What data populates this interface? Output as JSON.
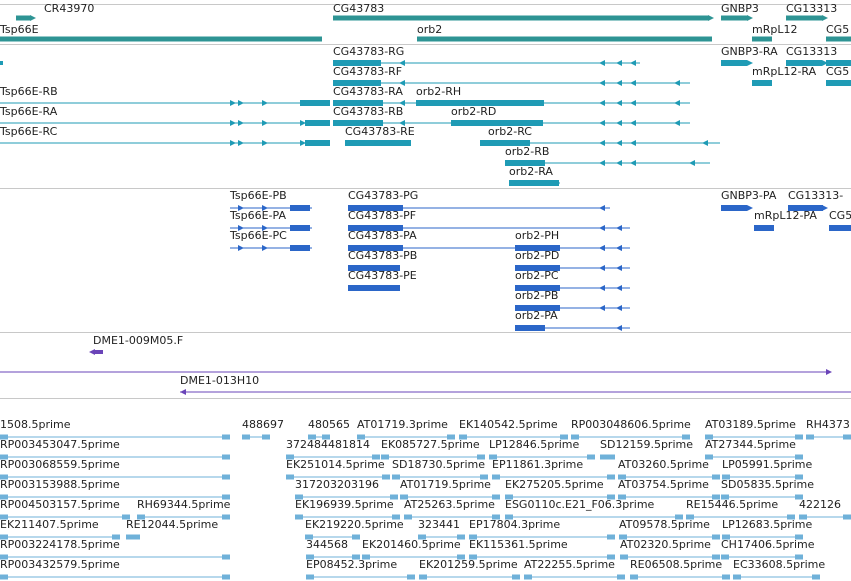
{
  "colors": {
    "gene": "#2e9494",
    "transcript": "#1f9bb5",
    "protein": "#2b66c8",
    "clone": "#6a44b8",
    "est": "#6fb1d9",
    "separator": "#c8c8c8"
  },
  "tracks": {
    "genes": [
      {
        "label": "CR43970",
        "strand": "+"
      },
      {
        "label": "CG43783",
        "strand": "+"
      },
      {
        "label": "GNBP3",
        "strand": "+"
      },
      {
        "label": "CG13313",
        "strand": "+"
      },
      {
        "label": "Tsp66E",
        "strand": "+"
      },
      {
        "label": "orb2",
        "strand": "-"
      },
      {
        "label": "mRpL12",
        "strand": "+"
      },
      {
        "label": "CG5",
        "strand": "+"
      }
    ],
    "transcripts": [
      {
        "label": "CG43783-RG"
      },
      {
        "label": "GNBP3-RA"
      },
      {
        "label": "CG13313"
      },
      {
        "label": "CG43783-RF"
      },
      {
        "label": "mRpL12-RA"
      },
      {
        "label": "CG5"
      },
      {
        "label": "Tsp66E-RB"
      },
      {
        "label": "CG43783-RA"
      },
      {
        "label": "orb2-RH"
      },
      {
        "label": "Tsp66E-RA"
      },
      {
        "label": "CG43783-RB"
      },
      {
        "label": "orb2-RD"
      },
      {
        "label": "Tsp66E-RC"
      },
      {
        "label": "CG43783-RE"
      },
      {
        "label": "orb2-RC"
      },
      {
        "label": "orb2-RB"
      },
      {
        "label": "orb2-RA"
      }
    ],
    "proteins": [
      {
        "label": "Tsp66E-PB"
      },
      {
        "label": "CG43783-PG"
      },
      {
        "label": "GNBP3-PA"
      },
      {
        "label": "CG13313-"
      },
      {
        "label": "Tsp66E-PA"
      },
      {
        "label": "CG43783-PF"
      },
      {
        "label": "mRpL12-PA"
      },
      {
        "label": "CG5"
      },
      {
        "label": "Tsp66E-PC"
      },
      {
        "label": "CG43783-PA"
      },
      {
        "label": "orb2-PH"
      },
      {
        "label": "CG43783-PB"
      },
      {
        "label": "orb2-PD"
      },
      {
        "label": "CG43783-PE"
      },
      {
        "label": "orb2-PC"
      },
      {
        "label": "orb2-PB"
      },
      {
        "label": "orb2-PA"
      }
    ],
    "clones": [
      {
        "label": "DME1-009M05.F"
      },
      {
        "label": "DME1-013H10"
      }
    ],
    "ests": [
      {
        "label": "1508.5prime"
      },
      {
        "label": "488697"
      },
      {
        "label": "480565"
      },
      {
        "label": "AT01719.3prime"
      },
      {
        "label": "EK140542.5prime"
      },
      {
        "label": "RP003048606.5prime"
      },
      {
        "label": "AT03189.5prime"
      },
      {
        "label": "RH4373"
      },
      {
        "label": "RP003453047.5prime"
      },
      {
        "label": "372484481814"
      },
      {
        "label": "EK085727.5prime"
      },
      {
        "label": "LP12846.5prime"
      },
      {
        "label": "SD12159.5prime"
      },
      {
        "label": "AT27344.5prime"
      },
      {
        "label": "RP003068559.5prime"
      },
      {
        "label": "EK251014.5prime"
      },
      {
        "label": "SD18730.5prime"
      },
      {
        "label": "EP11861.3prime"
      },
      {
        "label": "AT03260.5prime"
      },
      {
        "label": "LP05991.5prime"
      },
      {
        "label": "RP003153988.5prime"
      },
      {
        "label": "317203203196"
      },
      {
        "label": "AT01719.5prime"
      },
      {
        "label": "EK275205.5prime"
      },
      {
        "label": "AT03754.5prime"
      },
      {
        "label": "SD05835.5prime"
      },
      {
        "label": "RP004503157.5prime"
      },
      {
        "label": "RH69344.5prime"
      },
      {
        "label": "EK196939.5prime"
      },
      {
        "label": "AT25263.5prime"
      },
      {
        "label": "ESG0110c.E21_F06.3prime"
      },
      {
        "label": "RE15446.5prime"
      },
      {
        "label": "422126"
      },
      {
        "label": "EK211407.5prime"
      },
      {
        "label": "RE12044.5prime"
      },
      {
        "label": "EK219220.5prime"
      },
      {
        "label": "323441"
      },
      {
        "label": "EP17804.3prime"
      },
      {
        "label": "AT09578.5prime"
      },
      {
        "label": "LP12683.5prime"
      },
      {
        "label": "RP003224178.5prime"
      },
      {
        "label": "344568"
      },
      {
        "label": "EK201460.5prime"
      },
      {
        "label": "EK115361.5prime"
      },
      {
        "label": "AT02320.5prime"
      },
      {
        "label": "CH17406.5prime"
      },
      {
        "label": "RP003432579.5prime"
      },
      {
        "label": "EP08452.3prime"
      },
      {
        "label": "EK201259.5prime"
      },
      {
        "label": "AT22255.5prime"
      },
      {
        "label": "RE06508.5prime"
      },
      {
        "label": "EC33608.5prime"
      }
    ]
  }
}
